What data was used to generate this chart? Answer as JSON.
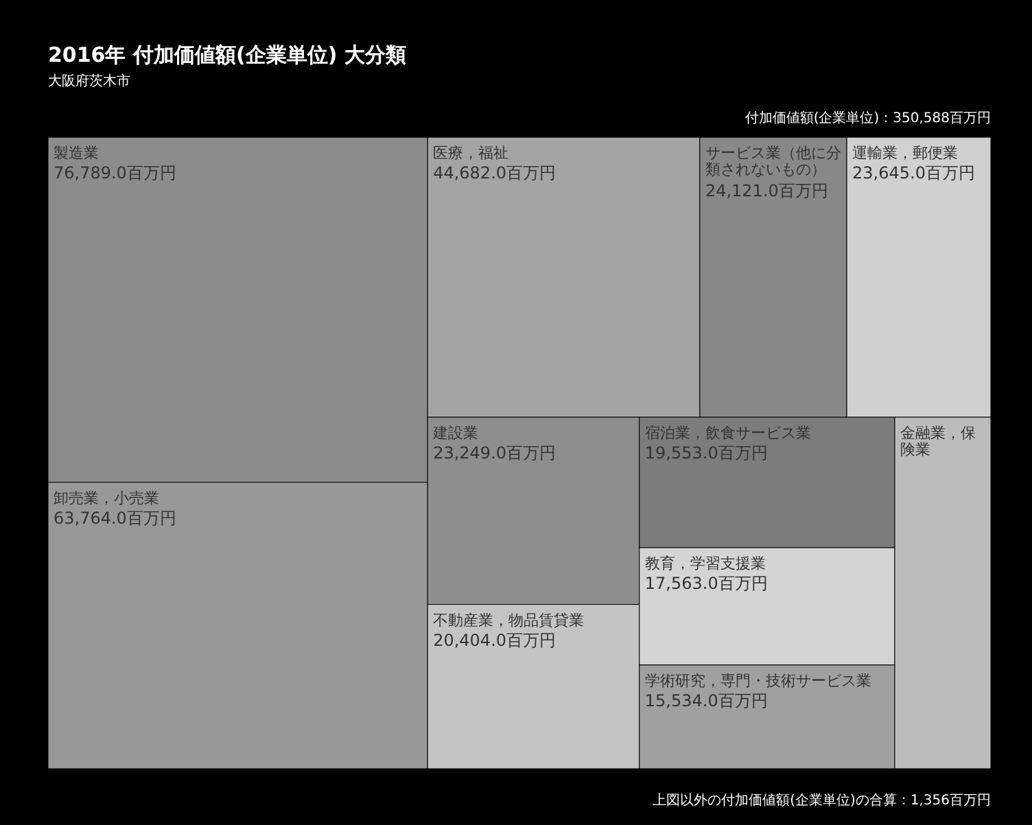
{
  "chart_data": {
    "type": "other",
    "title": "2016年 付加価値額(企業単位) 大分類",
    "subtitle": "大阪府茨木市",
    "annotations": [
      "付加価値額(企業単位)：350,588百万円",
      "上図以外の付加価値額(企業単位)の合算：1,356百万円"
    ],
    "categories": [
      "製造業",
      "卸売業，小売業",
      "医療，福祉",
      "サービス業（他に分類されないもの）",
      "運輸業，郵便業",
      "建設業",
      "不動産業，物品賃貸業",
      "宿泊業，飲食サービス業",
      "教育，学習支援業",
      "学術研究，専門・技術サービス業",
      "金融業，保険業"
    ],
    "values": [
      76789.0,
      63764.0,
      44682.0,
      24121.0,
      23645.0,
      23249.0,
      20404.0,
      19553.0,
      17563.0,
      15534.0,
      null
    ],
    "value_labels": [
      "76,789.0百万円",
      "63,764.0百万円",
      "44,682.0百万円",
      "24,121.0百万円",
      "23,645.0百万円",
      "23,249.0百万円",
      "20,404.0百万円",
      "19,553.0百万円",
      "17,563.0百万円",
      "15,534.0百万円",
      null
    ],
    "colors": [
      "#8c8c8c",
      "#989898",
      "#a4a4a4",
      "#888888",
      "#d0d0d0",
      "#8e8e8e",
      "#c4c4c4",
      "#7c7c7c",
      "#d4d4d4",
      "#a0a0a0",
      "#bcbcbc"
    ]
  }
}
